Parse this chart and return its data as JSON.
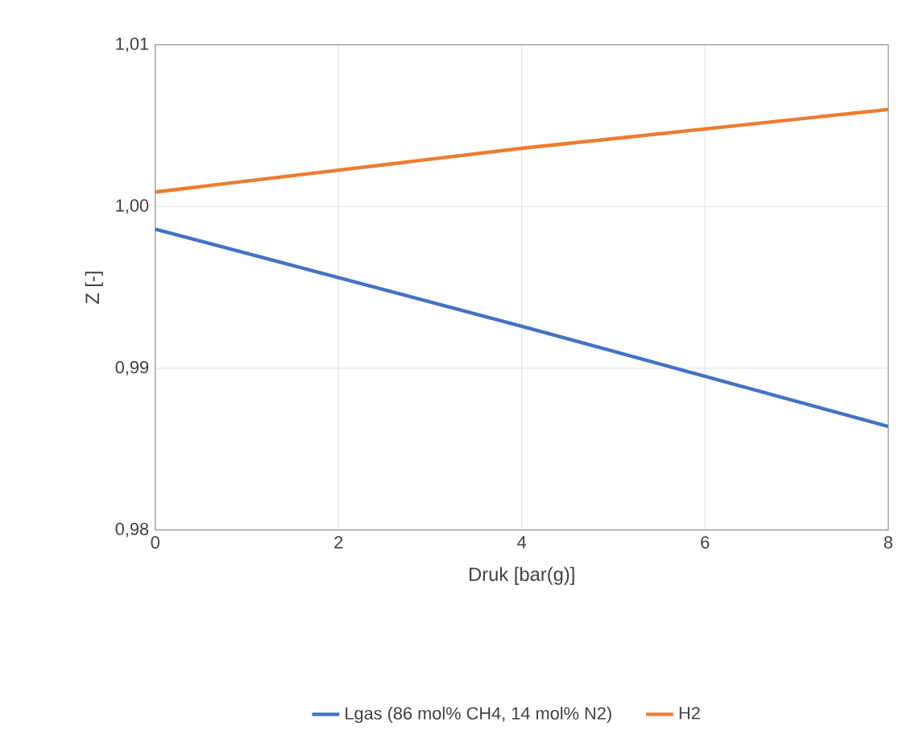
{
  "chart_data": {
    "type": "line",
    "xlabel": "Druk [bar(g)]",
    "ylabel": "Z [-]",
    "x": [
      0,
      4,
      8
    ],
    "series": [
      {
        "name": "Lgas (86 mol% CH4, 14 mol% N2)",
        "color": "#4472c4",
        "values": [
          0.9986,
          0.9926,
          0.9864
        ]
      },
      {
        "name": "H2",
        "color": "#ed7d31",
        "values": [
          1.0009,
          1.0036,
          1.006
        ]
      }
    ],
    "xlim": [
      0,
      8
    ],
    "xticks": [
      0,
      2,
      4,
      6,
      8
    ],
    "ylim": [
      0.98,
      1.01
    ],
    "yticks": [
      {
        "value": 0.98,
        "label": "0,98"
      },
      {
        "value": 0.99,
        "label": "0,99"
      },
      {
        "value": 1.0,
        "label": "1,00"
      },
      {
        "value": 1.01,
        "label": "1,01"
      }
    ],
    "grid": true,
    "legend": "bottom",
    "marker": "none",
    "line_style": "solid"
  }
}
